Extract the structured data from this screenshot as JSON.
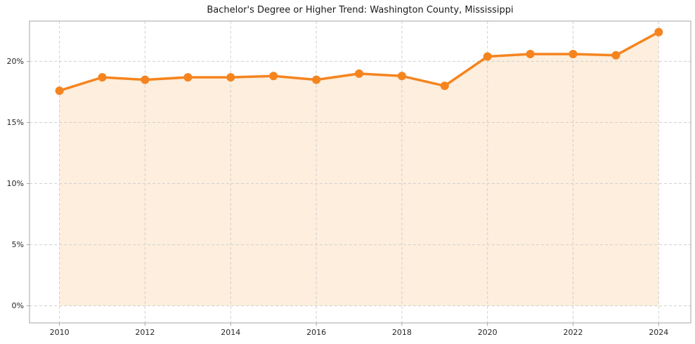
{
  "chart_data": {
    "type": "line",
    "title": "Bachelor's Degree or Higher Trend: Washington County, Mississippi",
    "x": [
      2010,
      2011,
      2012,
      2013,
      2014,
      2015,
      2016,
      2017,
      2018,
      2019,
      2020,
      2021,
      2022,
      2023,
      2024
    ],
    "values": [
      17.6,
      18.7,
      18.5,
      18.7,
      18.7,
      18.8,
      18.5,
      19.0,
      18.8,
      18.0,
      20.4,
      20.6,
      20.6,
      20.5,
      22.4
    ],
    "xlabel": "",
    "ylabel": "",
    "xlim": [
      2009.3,
      2024.75
    ],
    "ylim": [
      -1.4,
      23.3
    ],
    "xticks": [
      2010,
      2012,
      2014,
      2016,
      2018,
      2020,
      2022,
      2024
    ],
    "xtick_labels": [
      "2010",
      "2012",
      "2014",
      "2016",
      "2018",
      "2020",
      "2022",
      "2024"
    ],
    "yticks": [
      0,
      5,
      10,
      15,
      20
    ],
    "ytick_labels": [
      "0%",
      "5%",
      "10%",
      "15%",
      "20%"
    ],
    "grid": true,
    "grid_style": "dashed",
    "legend": "none",
    "marker": "circle",
    "area_fill_to": 0,
    "colors": {
      "line": "#f5841f",
      "marker": "#f5841f",
      "area_fill": "#fdeedd",
      "grid": "#d0d0d0",
      "spine": "#a6a6a6",
      "tick_text": "#262626",
      "title_text": "#1a1a1a",
      "background": "#ffffff"
    }
  }
}
